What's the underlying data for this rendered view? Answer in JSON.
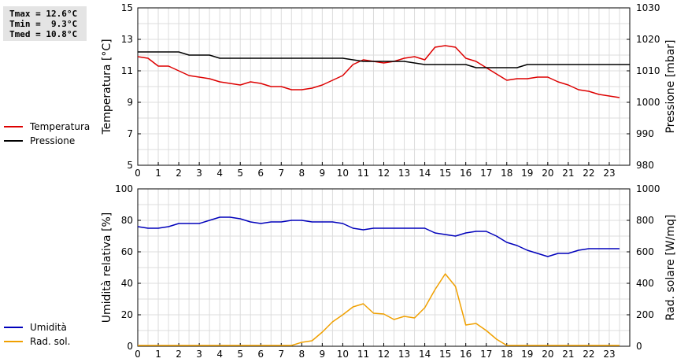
{
  "stats": {
    "tmax": "Tmax = 12.6°C",
    "tmin": "Tmin =  9.3°C",
    "tmed": "Tmed = 10.8°C"
  },
  "legend_top": [
    {
      "label": "Temperatura",
      "color": "#dd0000"
    },
    {
      "label": "Pressione",
      "color": "#000000"
    }
  ],
  "legend_bottom": [
    {
      "label": "Umidità",
      "color": "#0000bb"
    },
    {
      "label": "Rad. sol.",
      "color": "#f0a000"
    }
  ],
  "chart_data": [
    {
      "type": "line",
      "xlim": [
        0,
        24
      ],
      "x_ticks": [
        "0",
        "1",
        "2",
        "3",
        "4",
        "5",
        "6",
        "7",
        "8",
        "9",
        "10",
        "11",
        "12",
        "13",
        "14",
        "15",
        "16",
        "17",
        "18",
        "19",
        "20",
        "21",
        "22",
        "23"
      ],
      "grid": true,
      "y_left": {
        "label": "Temperatura [°C]",
        "ylim": [
          5,
          15
        ],
        "ticks": [
          "5",
          "7",
          "9",
          "11",
          "13",
          "15"
        ]
      },
      "y_right": {
        "label": "Pressione [mbar]",
        "ylim": [
          980,
          1030
        ],
        "ticks": [
          "980",
          "990",
          "1000",
          "1010",
          "1020",
          "1030"
        ]
      },
      "series": [
        {
          "name": "Temperatura",
          "axis": "left",
          "color": "#dd0000",
          "x": [
            0,
            0.5,
            1,
            1.5,
            2,
            2.5,
            3,
            3.5,
            4,
            4.5,
            5,
            5.5,
            6,
            6.5,
            7,
            7.5,
            8,
            8.5,
            9,
            9.5,
            10,
            10.5,
            11,
            11.5,
            12,
            12.5,
            13,
            13.5,
            14,
            14.5,
            15,
            15.5,
            16,
            16.5,
            17,
            17.5,
            18,
            18.5,
            19,
            19.5,
            20,
            20.5,
            21,
            21.5,
            22,
            22.5,
            23,
            23.5
          ],
          "y": [
            11.9,
            11.8,
            11.3,
            11.3,
            11.0,
            10.7,
            10.6,
            10.5,
            10.3,
            10.2,
            10.1,
            10.3,
            10.2,
            10.0,
            10.0,
            9.8,
            9.8,
            9.9,
            10.1,
            10.4,
            10.7,
            11.4,
            11.7,
            11.6,
            11.5,
            11.6,
            11.8,
            11.9,
            11.7,
            12.5,
            12.6,
            12.5,
            11.8,
            11.6,
            11.2,
            10.8,
            10.4,
            10.5,
            10.5,
            10.6,
            10.6,
            10.3,
            10.1,
            9.8,
            9.7,
            9.5,
            9.4,
            9.3
          ]
        },
        {
          "name": "Pressione",
          "axis": "right",
          "color": "#000000",
          "x": [
            0,
            2,
            2.5,
            3.5,
            4,
            10,
            11,
            13,
            14,
            16,
            16.5,
            18.5,
            19,
            24
          ],
          "y": [
            1016,
            1016,
            1015,
            1015,
            1014,
            1014,
            1013,
            1013,
            1012,
            1012,
            1011,
            1011,
            1012,
            1012
          ]
        }
      ]
    },
    {
      "type": "line",
      "xlim": [
        0,
        24
      ],
      "x_ticks": [
        "0",
        "1",
        "2",
        "3",
        "4",
        "5",
        "6",
        "7",
        "8",
        "9",
        "10",
        "11",
        "12",
        "13",
        "14",
        "15",
        "16",
        "17",
        "18",
        "19",
        "20",
        "21",
        "22",
        "23"
      ],
      "grid": true,
      "y_left": {
        "label": "Umidità relativa [%]",
        "ylim": [
          0,
          100
        ],
        "ticks": [
          "0",
          "20",
          "40",
          "60",
          "80",
          "100"
        ]
      },
      "y_right": {
        "label": "Rad. solare [W/mq]",
        "ylim": [
          0,
          1000
        ],
        "ticks": [
          "0",
          "200",
          "400",
          "600",
          "800",
          "1000"
        ]
      },
      "series": [
        {
          "name": "Umidità",
          "axis": "left",
          "color": "#0000bb",
          "x": [
            0,
            0.5,
            1,
            1.5,
            2,
            2.5,
            3,
            3.5,
            4,
            4.5,
            5,
            5.5,
            6,
            6.5,
            7,
            7.5,
            8,
            8.5,
            9,
            9.5,
            10,
            10.5,
            11,
            11.5,
            12,
            12.5,
            13,
            13.5,
            14,
            14.5,
            15,
            15.5,
            16,
            16.5,
            17,
            17.5,
            18,
            18.5,
            19,
            19.5,
            20,
            20.5,
            21,
            21.5,
            22,
            22.5,
            23,
            23.5
          ],
          "y": [
            76,
            75,
            75,
            76,
            78,
            78,
            78,
            80,
            82,
            82,
            81,
            79,
            78,
            79,
            79,
            80,
            80,
            79,
            79,
            79,
            78,
            75,
            74,
            75,
            75,
            75,
            75,
            75,
            75,
            72,
            71,
            70,
            72,
            73,
            73,
            70,
            66,
            64,
            61,
            59,
            57,
            59,
            59,
            61,
            62,
            62,
            62,
            62
          ]
        },
        {
          "name": "Rad. sol.",
          "axis": "right",
          "color": "#f0a000",
          "x": [
            0,
            1,
            2,
            3,
            4,
            5,
            6,
            7,
            7.5,
            8,
            8.5,
            9,
            9.5,
            10,
            10.5,
            11,
            11.5,
            12,
            12.5,
            13,
            13.5,
            14,
            14.5,
            15,
            15.5,
            16,
            16.5,
            17,
            17.5,
            18,
            19,
            20,
            21,
            22,
            23,
            23.5
          ],
          "y": [
            5,
            5,
            5,
            5,
            5,
            5,
            5,
            5,
            5,
            25,
            35,
            90,
            155,
            200,
            250,
            270,
            210,
            205,
            170,
            190,
            180,
            245,
            360,
            460,
            380,
            135,
            145,
            100,
            45,
            5,
            5,
            5,
            5,
            5,
            5,
            5
          ]
        }
      ]
    }
  ]
}
